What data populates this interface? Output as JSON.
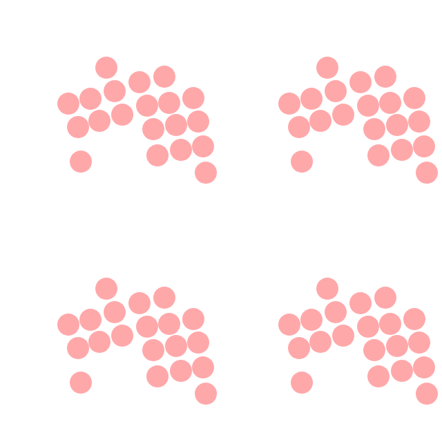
{
  "pattern": {
    "dot_color": "#ffa8aa",
    "background_color": "#ffffff",
    "tile_count": 4,
    "dots_per_tile": 20
  }
}
